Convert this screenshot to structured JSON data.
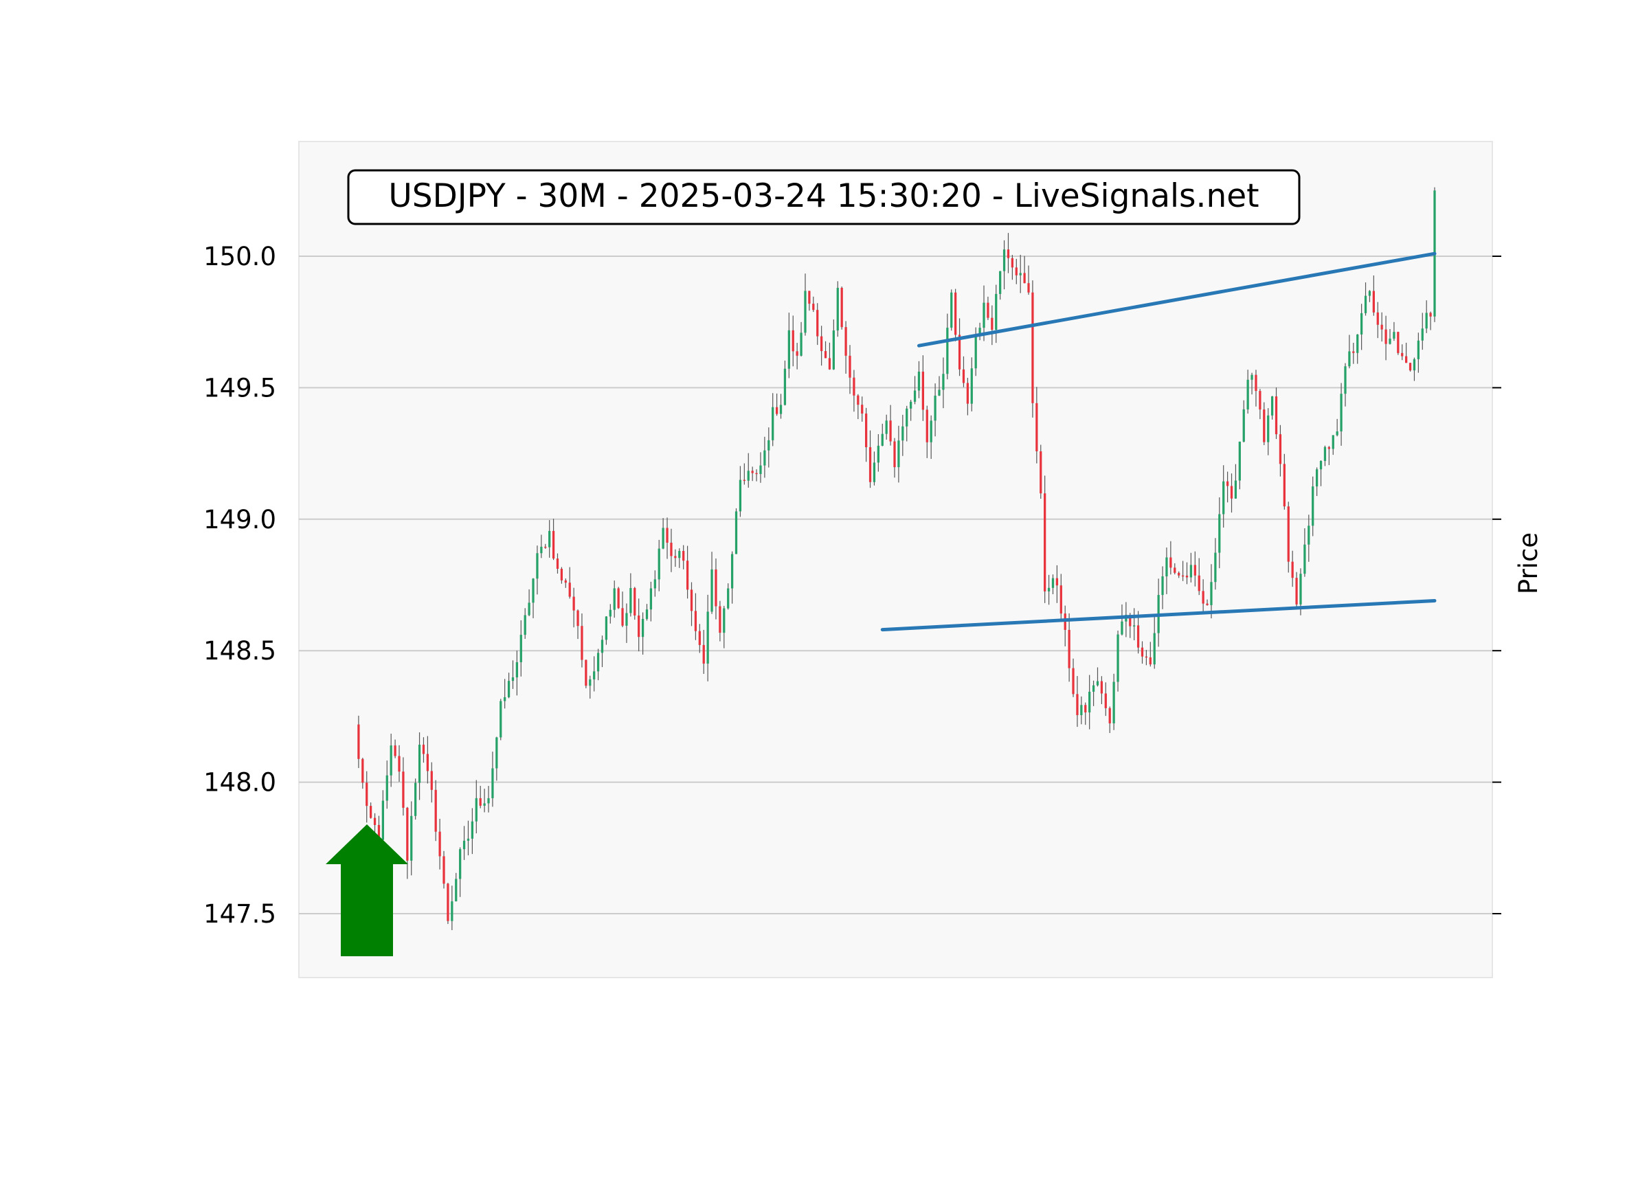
{
  "chart_data": {
    "type": "candlestick",
    "title": "USDJPY - 30M - 2025-03-24 15:30:20 - LiveSignals.net",
    "ylabel": "Price",
    "xlabel": "",
    "ylim": [
      147.27,
      150.44
    ],
    "y_ticks": [
      "147.5",
      "148.0",
      "148.5",
      "149.0",
      "149.5",
      "150.0"
    ],
    "grid": true,
    "colors": {
      "up": "#26a269",
      "down": "#e8323c",
      "wick": "#555555",
      "trendline": "#2878b5",
      "signal_arrow": "#008000",
      "plot_background": "#f8f8f8",
      "grid": "#cccccc"
    },
    "signal": {
      "type": "buy-arrow",
      "color": "#008000"
    },
    "anchors": [
      [
        0,
        148.21
      ],
      [
        3,
        147.88
      ],
      [
        6,
        147.8
      ],
      [
        9,
        148.12
      ],
      [
        11,
        148.05
      ],
      [
        13,
        147.72
      ],
      [
        16,
        148.16
      ],
      [
        19,
        147.95
      ],
      [
        21,
        147.72
      ],
      [
        23,
        147.48
      ],
      [
        26,
        147.72
      ],
      [
        28,
        147.79
      ],
      [
        30,
        147.92
      ],
      [
        33,
        147.95
      ],
      [
        36,
        148.28
      ],
      [
        40,
        148.46
      ],
      [
        45,
        148.85
      ],
      [
        48,
        148.95
      ],
      [
        50,
        148.8
      ],
      [
        53,
        148.72
      ],
      [
        55,
        148.6
      ],
      [
        57,
        148.34
      ],
      [
        59,
        148.45
      ],
      [
        62,
        148.62
      ],
      [
        64,
        148.75
      ],
      [
        66,
        148.6
      ],
      [
        68,
        148.72
      ],
      [
        70,
        148.55
      ],
      [
        72,
        148.65
      ],
      [
        74,
        148.8
      ],
      [
        76,
        148.97
      ],
      [
        78,
        148.85
      ],
      [
        80,
        148.88
      ],
      [
        82,
        148.75
      ],
      [
        84,
        148.55
      ],
      [
        86,
        148.48
      ],
      [
        88,
        148.8
      ],
      [
        90,
        148.55
      ],
      [
        93,
        148.85
      ],
      [
        95,
        149.15
      ],
      [
        97,
        149.18
      ],
      [
        99,
        149.15
      ],
      [
        101,
        149.25
      ],
      [
        103,
        149.4
      ],
      [
        105,
        149.45
      ],
      [
        107,
        149.7
      ],
      [
        109,
        149.6
      ],
      [
        111,
        149.85
      ],
      [
        113,
        149.8
      ],
      [
        115,
        149.65
      ],
      [
        117,
        149.55
      ],
      [
        119,
        149.85
      ],
      [
        121,
        149.6
      ],
      [
        123,
        149.5
      ],
      [
        125,
        149.4
      ],
      [
        127,
        149.13
      ],
      [
        129,
        149.28
      ],
      [
        131,
        149.35
      ],
      [
        133,
        149.22
      ],
      [
        135,
        149.37
      ],
      [
        137,
        149.45
      ],
      [
        139,
        149.55
      ],
      [
        141,
        149.3
      ],
      [
        143,
        149.48
      ],
      [
        145,
        149.55
      ],
      [
        147,
        149.85
      ],
      [
        149,
        149.55
      ],
      [
        151,
        149.45
      ],
      [
        153,
        149.7
      ],
      [
        155,
        149.8
      ],
      [
        157,
        149.75
      ],
      [
        159,
        149.95
      ],
      [
        160,
        150.05
      ],
      [
        162,
        149.98
      ],
      [
        164,
        149.92
      ],
      [
        166,
        149.85
      ],
      [
        167,
        149.45
      ],
      [
        169,
        149.1
      ],
      [
        170,
        148.7
      ],
      [
        172,
        148.8
      ],
      [
        174,
        148.65
      ],
      [
        176,
        148.45
      ],
      [
        178,
        148.25
      ],
      [
        180,
        148.28
      ],
      [
        182,
        148.38
      ],
      [
        184,
        148.35
      ],
      [
        186,
        148.21
      ],
      [
        188,
        148.55
      ],
      [
        190,
        148.65
      ],
      [
        192,
        148.58
      ],
      [
        194,
        148.5
      ],
      [
        196,
        148.45
      ],
      [
        198,
        148.7
      ],
      [
        200,
        148.85
      ],
      [
        202,
        148.8
      ],
      [
        204,
        148.78
      ],
      [
        206,
        148.8
      ],
      [
        208,
        148.72
      ],
      [
        210,
        148.65
      ],
      [
        212,
        148.9
      ],
      [
        214,
        149.15
      ],
      [
        216,
        149.05
      ],
      [
        218,
        149.3
      ],
      [
        220,
        149.55
      ],
      [
        222,
        149.5
      ],
      [
        224,
        149.28
      ],
      [
        226,
        149.45
      ],
      [
        228,
        149.2
      ],
      [
        230,
        148.85
      ],
      [
        232,
        148.67
      ],
      [
        234,
        148.9
      ],
      [
        236,
        149.1
      ],
      [
        238,
        149.25
      ],
      [
        240,
        149.28
      ],
      [
        242,
        149.32
      ],
      [
        244,
        149.58
      ],
      [
        246,
        149.65
      ],
      [
        248,
        149.8
      ],
      [
        250,
        149.85
      ],
      [
        252,
        149.75
      ],
      [
        254,
        149.65
      ],
      [
        256,
        149.7
      ],
      [
        258,
        149.6
      ],
      [
        260,
        149.55
      ],
      [
        262,
        149.7
      ],
      [
        264,
        149.8
      ],
      [
        265,
        149.78
      ],
      [
        266,
        150.25
      ]
    ],
    "trendlines": [
      {
        "from": [
          139,
          149.66
        ],
        "to": [
          266,
          150.01
        ]
      },
      {
        "from": [
          130,
          148.58
        ],
        "to": [
          266,
          148.69
        ]
      }
    ]
  }
}
